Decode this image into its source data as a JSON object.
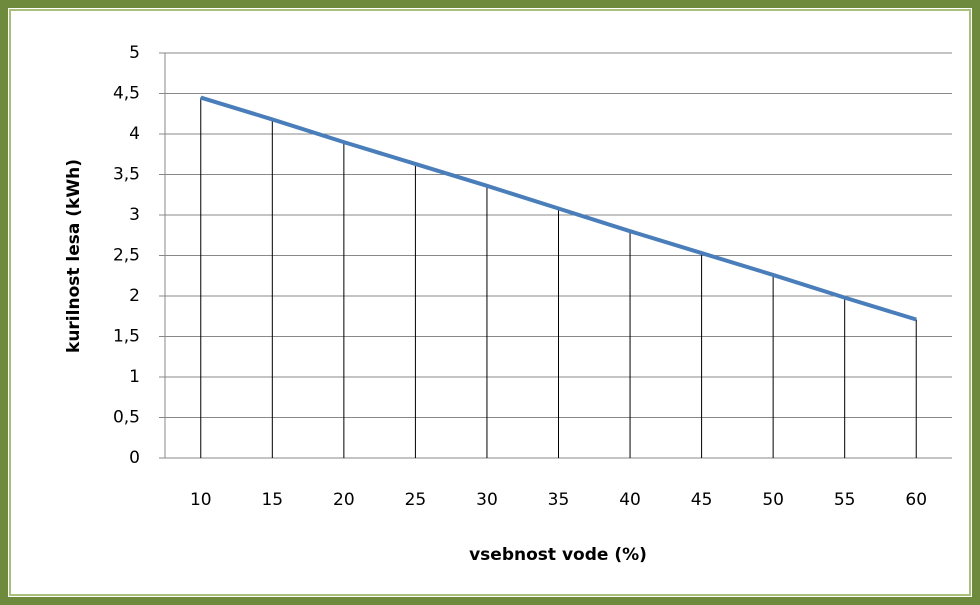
{
  "chart_data": {
    "type": "line",
    "x_label": "vsebnost vode (%)",
    "y_label": "kurilnost lesa (kWh)",
    "x": [
      10,
      15,
      20,
      25,
      30,
      35,
      40,
      45,
      50,
      55,
      60
    ],
    "series": [
      {
        "name": "kurilnost lesa",
        "color": "#4a7ebb",
        "values": [
          4.45,
          4.18,
          3.9,
          3.63,
          3.36,
          3.08,
          2.8,
          2.53,
          2.26,
          1.98,
          1.71
        ]
      }
    ],
    "xlim": [
      7.5,
      62.5
    ],
    "xticks": [
      10,
      15,
      20,
      25,
      30,
      35,
      40,
      45,
      50,
      55,
      60
    ],
    "ylim": [
      0,
      5
    ],
    "yticks": [
      0,
      {
        "value": 0.5,
        "label": "0,5"
      },
      1,
      {
        "value": 1.5,
        "label": "1,5"
      },
      2,
      {
        "value": 2.5,
        "label": "2,5"
      },
      3,
      {
        "value": 3.5,
        "label": "3,5"
      },
      4,
      {
        "value": 4.5,
        "label": "4,5"
      },
      5
    ],
    "grid": true,
    "drop_lines": true
  }
}
